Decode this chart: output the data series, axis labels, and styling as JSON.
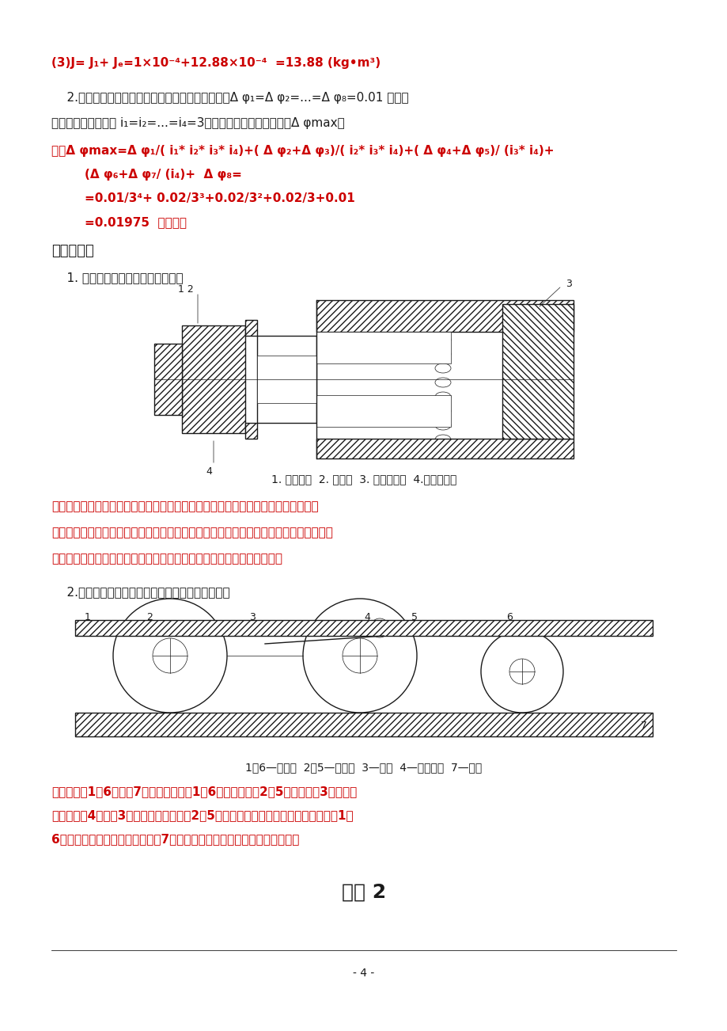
{
  "bg_color": "#ffffff",
  "RED": "#cc0000",
  "BLACK": "#1a1a1a",
  "BLUE": "#0000bb",
  "page_width": 9.2,
  "page_height": 13.02,
  "texts": {
    "line1": "(3)J= J₁+ Jₑ=1×10⁻⁴+12.88×10⁻⁴  =13.88 (kg•m³)",
    "line2": "    2.已知某四级齿轮传动系统，各齿轮的转角误差为Δ φ₁=Δ φ₂=...=Δ φ₈=0.01 弧度，",
    "line3": "各级减速比相同，即 i₁=i₂=...=i₄=3，求该系统的最大转角误差Δ φmax。",
    "sol1": "解：Δ φmax=Δ φ₁/( i₁* i₂* i₃* i₄)+( Δ φ₂+Δ φ₃)/( i₂* i₃* i₄)+( Δ φ₄+Δ φ₅)/ (i₃* i₄)+",
    "sol2": "        (Δ φ₆+Δ φ₇/ (i₄)+  Δ φ₈=",
    "sol3": "        =0.01/3⁴+ 0.02/3³+0.02/3²+0.02/3+0.01",
    "sol4": "        =0.01975  （弧度）",
    "sec5": "五、综合题",
    "q1": "    1. 分析下图调整齿侧间隙的原理。",
    "fig1cap": "1. 锁紧螺母  2. 圆螺母  3. 带凸缘螺母  4.无凸缘螺母",
    "ans1a": "答：图中所示的双螺母螺绌预紧调整齿侧间隙，双螺母中的一个外端有凸缘，一个外",
    "ans1b": "端无凸缘，但制有螺绌，它伸出套筒外用两个螺母固定锁紧，并用键来防止两螺母相对转",
    "ans1c": "动。旋转圆螺母可调整消除间隙并产生预紧力，之后再用锁紧螺母锁紧。",
    "q2": "    2.分析下图中传动大负载时消除齿侧间隙的原理。",
    "fig2cap": "1、6—小齿轮  2、5—大齿轮  3—齿轮  4—预载装置  7—齿条",
    "ans2a": "答：小齿轮1、6与齿条7噜合，与小齿轮1、6同轴的大齿轮2、5分别与齿轮3噜合，通",
    "ans2b": "过预载装甲4向齿轮3上预加负载，使齿轮2、5同时向相反方向移动，从而带动小齿轮1、",
    "ans2c": "6转动，其齿面便分别紧贴在齿条7上齿槽的左、右侧，从而消除了齿侧间隙",
    "footer": "作业 2",
    "pagenum": "- 4 -"
  }
}
